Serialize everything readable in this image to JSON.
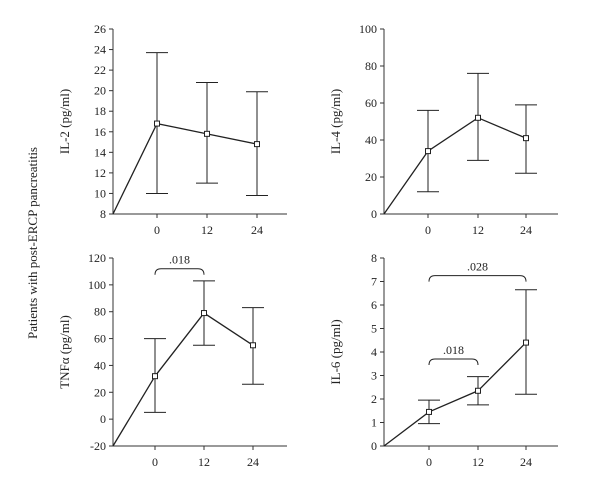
{
  "side_label": "Patients with post-ERCP pancreatitis",
  "chart_data": [
    {
      "type": "line",
      "ylabel": "IL-2 (pg/ml)",
      "x_ticks": [
        "0",
        "12",
        "24"
      ],
      "ylim": [
        8,
        26
      ],
      "y_ticks": [
        8,
        10,
        12,
        14,
        16,
        18,
        20,
        22,
        24,
        26
      ],
      "series": [
        {
          "points": [
            {
              "x": "0",
              "y": 16.8,
              "lower": 10.0,
              "upper": 23.7
            },
            {
              "x": "12",
              "y": 15.8,
              "lower": 11.0,
              "upper": 20.8
            },
            {
              "x": "24",
              "y": 14.8,
              "lower": 9.8,
              "upper": 19.9
            }
          ]
        }
      ],
      "annotations": []
    },
    {
      "type": "line",
      "ylabel": "IL-4 (pg/ml)",
      "x_ticks": [
        "0",
        "12",
        "24"
      ],
      "ylim": [
        0,
        100
      ],
      "y_ticks": [
        0,
        20,
        40,
        60,
        80,
        100
      ],
      "series": [
        {
          "points": [
            {
              "x": "0",
              "y": 34,
              "lower": 12,
              "upper": 56
            },
            {
              "x": "12",
              "y": 52,
              "lower": 29,
              "upper": 76
            },
            {
              "x": "24",
              "y": 41,
              "lower": 22,
              "upper": 59
            }
          ]
        }
      ],
      "annotations": []
    },
    {
      "type": "line",
      "ylabel": "TNFα (pg/ml)",
      "x_ticks": [
        "0",
        "12",
        "24"
      ],
      "ylim": [
        -20,
        120
      ],
      "y_ticks": [
        -20,
        0,
        20,
        40,
        60,
        80,
        100,
        120
      ],
      "series": [
        {
          "points": [
            {
              "x": "0",
              "y": 32,
              "lower": 5,
              "upper": 60
            },
            {
              "x": "12",
              "y": 79,
              "lower": 55,
              "upper": 103
            },
            {
              "x": "24",
              "y": 55,
              "lower": 26,
              "upper": 83
            }
          ]
        }
      ],
      "annotations": [
        {
          "from": "0",
          "to": "12",
          "text": ".018",
          "y": 112
        }
      ]
    },
    {
      "type": "line",
      "ylabel": "IL-6 (pg/ml)",
      "x_ticks": [
        "0",
        "12",
        "24"
      ],
      "ylim": [
        0,
        8
      ],
      "y_ticks": [
        0,
        1,
        2,
        3,
        4,
        5,
        6,
        7,
        8
      ],
      "series": [
        {
          "points": [
            {
              "x": "0",
              "y": 1.45,
              "lower": 0.95,
              "upper": 1.95
            },
            {
              "x": "12",
              "y": 2.35,
              "lower": 1.75,
              "upper": 2.95
            },
            {
              "x": "24",
              "y": 4.4,
              "lower": 2.2,
              "upper": 6.65
            }
          ]
        }
      ],
      "annotations": [
        {
          "from": "0",
          "to": "12",
          "text": ".018",
          "y": 3.7
        },
        {
          "from": "0",
          "to": "24",
          "text": ".028",
          "y": 7.25
        }
      ]
    }
  ]
}
